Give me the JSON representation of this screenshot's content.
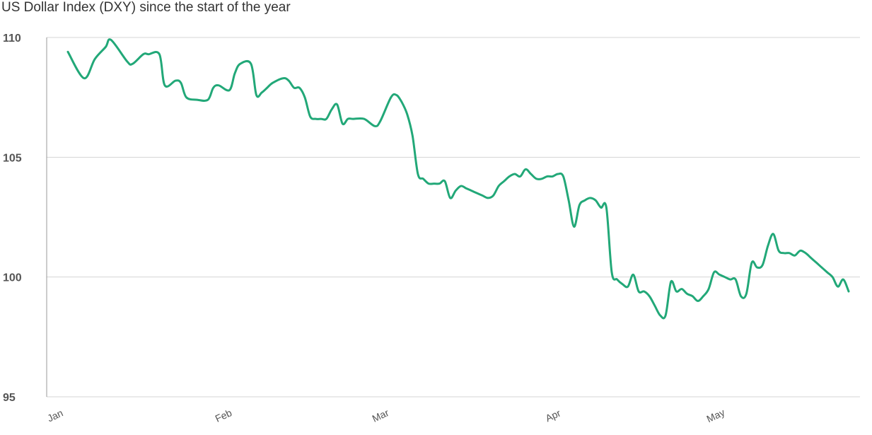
{
  "chart_data": {
    "type": "line",
    "title": "US Dollar Index (DXY) since the start of the year",
    "xlabel": "",
    "ylabel": "",
    "ylim": [
      95,
      110
    ],
    "yticks": [
      "110",
      "105",
      "100",
      "95"
    ],
    "xticks": [
      "Jan",
      "Feb",
      "Mar",
      "Apr",
      "May"
    ],
    "grid": true,
    "line_color": "#22a878",
    "series": [
      {
        "x": [
          0,
          3,
          5,
          7,
          8,
          11,
          12,
          14,
          15,
          17,
          18,
          20,
          21,
          22,
          24,
          26,
          27,
          28,
          30,
          31,
          32,
          34,
          35,
          36,
          37,
          38,
          40,
          41,
          42,
          43,
          44,
          45,
          46,
          47,
          48,
          49,
          50,
          51,
          52,
          53,
          55,
          57,
          58,
          60,
          61,
          62,
          63,
          64,
          65,
          66,
          67,
          68,
          69,
          70,
          71,
          72,
          73,
          74,
          75,
          76,
          77,
          78,
          79,
          80,
          81,
          82,
          83,
          84,
          85,
          86,
          87,
          88,
          89,
          90,
          91,
          92,
          93,
          94,
          95,
          96,
          97,
          98,
          99,
          100,
          101,
          102,
          103,
          104,
          105,
          106,
          107,
          108,
          109,
          110,
          111,
          112,
          113,
          114,
          115,
          116,
          117,
          118,
          119,
          120,
          121,
          122,
          123,
          124,
          125,
          126,
          127,
          128,
          129,
          130,
          131,
          132,
          133,
          134,
          135,
          136,
          137,
          138,
          139,
          140,
          141,
          142,
          143,
          144,
          145
        ],
        "values": [
          109.4,
          108.3,
          109.1,
          109.6,
          109.9,
          109.0,
          108.9,
          109.3,
          109.3,
          109.3,
          108.0,
          108.2,
          108.1,
          107.5,
          107.4,
          107.4,
          107.9,
          108.0,
          107.8,
          108.5,
          108.9,
          108.9,
          107.6,
          107.7,
          107.9,
          108.1,
          108.3,
          108.2,
          107.9,
          107.9,
          107.5,
          106.7,
          106.6,
          106.6,
          106.6,
          107.0,
          107.2,
          106.4,
          106.6,
          106.6,
          106.6,
          106.3,
          106.5,
          107.5,
          107.6,
          107.3,
          106.8,
          105.9,
          104.3,
          104.1,
          103.9,
          103.9,
          103.9,
          104.0,
          103.3,
          103.6,
          103.8,
          103.7,
          103.6,
          103.5,
          103.4,
          103.3,
          103.4,
          103.8,
          104.0,
          104.2,
          104.3,
          104.2,
          104.5,
          104.3,
          104.1,
          104.1,
          104.2,
          104.2,
          104.3,
          104.2,
          103.2,
          102.1,
          103.0,
          103.2,
          103.3,
          103.2,
          102.9,
          102.9,
          100.2,
          99.9,
          99.7,
          99.6,
          100.1,
          99.4,
          99.4,
          99.2,
          98.8,
          98.4,
          98.4,
          99.8,
          99.4,
          99.5,
          99.3,
          99.2,
          99.0,
          99.2,
          99.5,
          100.2,
          100.1,
          100.0,
          99.9,
          99.9,
          99.2,
          99.3,
          100.6,
          100.4,
          100.5,
          101.3,
          101.8,
          101.1,
          101.0,
          101.0,
          100.9,
          101.1,
          101.0,
          100.8,
          100.6,
          100.4,
          100.2,
          100.0,
          99.6,
          99.9,
          99.4
        ]
      }
    ]
  }
}
